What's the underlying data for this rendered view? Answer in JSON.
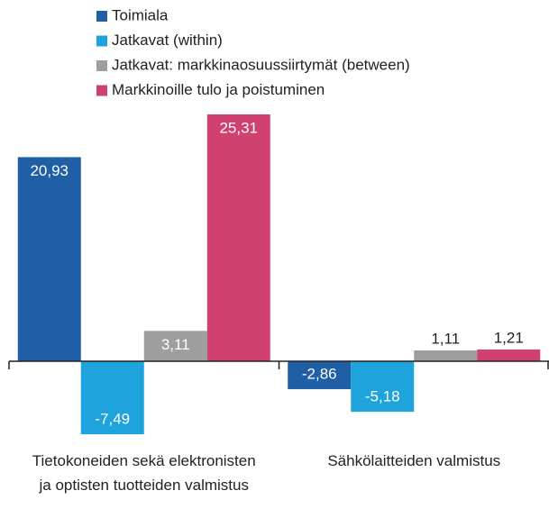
{
  "chart_data": {
    "type": "bar",
    "categories": [
      "Tietokoneiden sekä elektronisten ja optisten tuotteiden valmistus",
      "Sähkölaitteiden valmistus"
    ],
    "series": [
      {
        "name": "Toimiala",
        "color": "#1f5fa6",
        "values": [
          20.93,
          -2.86
        ],
        "value_labels": [
          "20,93",
          "-2,86"
        ]
      },
      {
        "name": "Jatkavat (within)",
        "color": "#1ea3dc",
        "values": [
          -7.49,
          -5.18
        ],
        "value_labels": [
          "-7,49",
          "-5,18"
        ]
      },
      {
        "name": "Jatkavat: markkinaosuussiirtymät (between)",
        "color": "#9e9e9e",
        "values": [
          3.11,
          1.11
        ],
        "value_labels": [
          "3,11",
          "1,11"
        ]
      },
      {
        "name": "Markkinoille tulo ja poistuminen",
        "color": "#d0416f",
        "values": [
          25.31,
          1.21
        ],
        "value_labels": [
          "25,31",
          "1,21"
        ]
      }
    ]
  }
}
